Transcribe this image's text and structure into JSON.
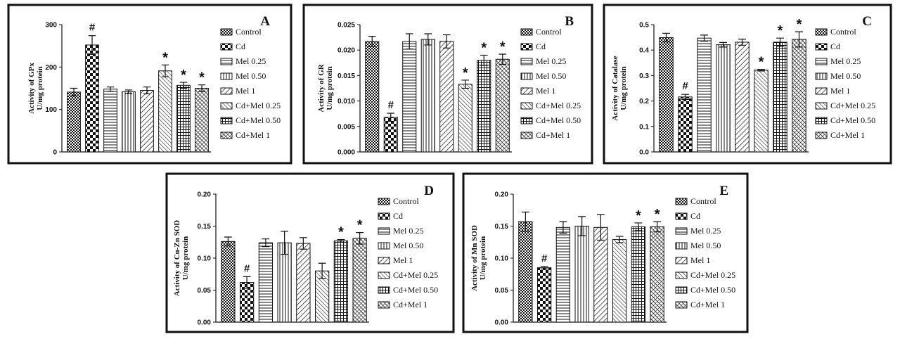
{
  "legend": [
    "Control",
    "Cd",
    "Mel 0.25",
    "Mel 0.50",
    "Mel 1",
    "Cd+Mel 0.25",
    "Cd+Mel 0.50",
    "Cd+Mel 1"
  ],
  "colors": {
    "frame": "#111111",
    "bars": "#111111",
    "background": "#ffffff"
  },
  "chart_data": [
    {
      "type": "bar",
      "panel": "A",
      "ylabel_line1": "Activity of GPx",
      "ylabel_line2": "U/mg protein",
      "ylim": [
        0,
        300
      ],
      "yticks": [
        "0",
        "100",
        "200",
        "300"
      ],
      "yticks_values": [
        0,
        100,
        200,
        300
      ],
      "categories": [
        "Control",
        "Cd",
        "Mel 0.25",
        "Mel 0.50",
        "Mel 1",
        "Cd+Mel 0.25",
        "Cd+Mel 0.50",
        "Cd+Mel 1"
      ],
      "values": [
        141,
        252,
        148,
        142,
        145,
        191,
        157,
        150
      ],
      "errors": [
        9,
        22,
        5,
        4,
        8,
        14,
        7,
        8
      ],
      "significance": [
        "",
        "#",
        "",
        "",
        "",
        "*",
        "*",
        "*"
      ]
    },
    {
      "type": "bar",
      "panel": "B",
      "ylabel_line1": "Activity of GR",
      "ylabel_line2": "U/mg protein",
      "ylim": [
        0,
        0.025
      ],
      "yticks": [
        "0.000",
        "0.005",
        "0.010",
        "0.015",
        "0.020",
        "0.025"
      ],
      "yticks_values": [
        0,
        0.005,
        0.01,
        0.015,
        0.02,
        0.025
      ],
      "categories": [
        "Control",
        "Cd",
        "Mel 0.25",
        "Mel 0.50",
        "Mel 1",
        "Cd+Mel 0.25",
        "Cd+Mel 0.50",
        "Cd+Mel 1"
      ],
      "values": [
        0.0217,
        0.0068,
        0.0217,
        0.0221,
        0.0217,
        0.0133,
        0.018,
        0.0182
      ],
      "errors": [
        0.001,
        0.0008,
        0.0015,
        0.0011,
        0.0013,
        0.0008,
        0.001,
        0.001
      ],
      "significance": [
        "",
        "#",
        "",
        "",
        "",
        "*",
        "*",
        "*"
      ]
    },
    {
      "type": "bar",
      "panel": "C",
      "ylabel_line1": "Activity of Catalase",
      "ylabel_line2": "U/mg protein",
      "ylim": [
        0,
        0.5
      ],
      "yticks": [
        "0.0",
        "0.1",
        "0.2",
        "0.3",
        "0.4",
        "0.5"
      ],
      "yticks_values": [
        0,
        0.1,
        0.2,
        0.3,
        0.4,
        0.5
      ],
      "categories": [
        "Control",
        "Cd",
        "Mel 0.25",
        "Mel 0.50",
        "Mel 1",
        "Cd+Mel 0.25",
        "Cd+Mel 0.50",
        "Cd+Mel 1"
      ],
      "values": [
        0.449,
        0.216,
        0.447,
        0.421,
        0.431,
        0.321,
        0.431,
        0.442
      ],
      "errors": [
        0.017,
        0.01,
        0.012,
        0.009,
        0.012,
        0.003,
        0.016,
        0.03
      ],
      "significance": [
        "",
        "#",
        "",
        "",
        "",
        "*",
        "*",
        "*"
      ]
    },
    {
      "type": "bar",
      "panel": "D",
      "ylabel_line1": "Activity of Cu-Zn SOD",
      "ylabel_line2": "U/mg protein",
      "ylim": [
        0,
        0.2
      ],
      "yticks": [
        "0.00",
        "0.05",
        "0.10",
        "0.15",
        "0.20"
      ],
      "yticks_values": [
        0,
        0.05,
        0.1,
        0.15,
        0.2
      ],
      "categories": [
        "Control",
        "Cd",
        "Mel 0.25",
        "Mel 0.50",
        "Mel 1",
        "Cd+Mel 0.25",
        "Cd+Mel 0.50",
        "Cd+Mel 1"
      ],
      "values": [
        0.126,
        0.062,
        0.124,
        0.124,
        0.123,
        0.08,
        0.127,
        0.131
      ],
      "errors": [
        0.007,
        0.009,
        0.006,
        0.018,
        0.009,
        0.012,
        0.002,
        0.009
      ],
      "significance": [
        "",
        "#",
        "",
        "",
        "",
        "",
        "*",
        "*"
      ]
    },
    {
      "type": "bar",
      "panel": "E",
      "ylabel_line1": "Activity of Mn SOD",
      "ylabel_line2": "U/mg protein",
      "ylim": [
        0,
        0.2
      ],
      "yticks": [
        "0.00",
        "0.05",
        "0.10",
        "0.15",
        "0.20"
      ],
      "yticks_values": [
        0,
        0.05,
        0.1,
        0.15,
        0.2
      ],
      "categories": [
        "Control",
        "Cd",
        "Mel 0.25",
        "Mel 0.50",
        "Mel 1",
        "Cd+Mel 0.25",
        "Cd+Mel 0.50",
        "Cd+Mel 1"
      ],
      "values": [
        0.157,
        0.085,
        0.148,
        0.15,
        0.148,
        0.129,
        0.149,
        0.149
      ],
      "errors": [
        0.015,
        0.002,
        0.009,
        0.015,
        0.02,
        0.005,
        0.006,
        0.008
      ],
      "significance": [
        "",
        "#",
        "",
        "",
        "",
        "",
        "*",
        "*"
      ]
    }
  ]
}
